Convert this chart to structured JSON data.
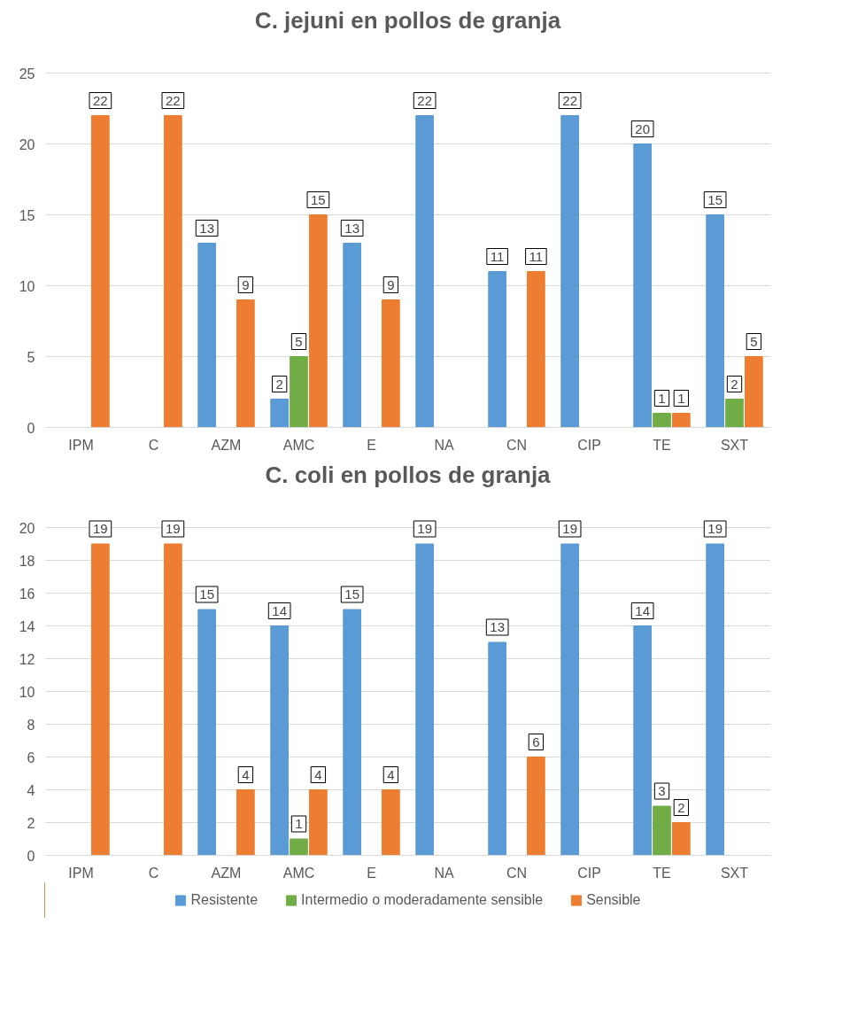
{
  "chart_data": [
    {
      "type": "bar",
      "title": "C. jejuni en pollos de granja",
      "categories": [
        "IPM",
        "C",
        "AZM",
        "AMC",
        "E",
        "NA",
        "CN",
        "CIP",
        "TE",
        "SXT"
      ],
      "ylim": [
        0,
        25
      ],
      "yticks": [
        0,
        5,
        10,
        15,
        20,
        25
      ],
      "grid": "y",
      "series": [
        {
          "color": "#5b9bd5",
          "values": [
            0,
            0,
            13,
            2,
            13,
            22,
            11,
            22,
            20,
            15
          ],
          "value_labels": [
            null,
            null,
            "13",
            "2",
            "13",
            "22",
            "11",
            "22",
            "20",
            "15"
          ]
        },
        {
          "color": "#70ad47",
          "values": [
            0,
            0,
            0,
            5,
            0,
            0,
            0,
            0,
            1,
            2
          ],
          "value_labels": [
            null,
            null,
            null,
            "5",
            null,
            null,
            null,
            null,
            "1",
            "2"
          ]
        },
        {
          "color": "#ed7d31",
          "values": [
            22,
            22,
            9,
            15,
            9,
            0,
            11,
            0,
            1,
            5
          ],
          "value_labels": [
            "22",
            "22",
            "9",
            "15",
            "9",
            null,
            "11",
            null,
            "1",
            "5"
          ]
        }
      ]
    },
    {
      "type": "bar",
      "title": "C. coli en pollos de granja",
      "categories": [
        "IPM",
        "C",
        "AZM",
        "AMC",
        "E",
        "NA",
        "CN",
        "CIP",
        "TE",
        "SXT"
      ],
      "ylim": [
        0,
        20
      ],
      "yticks": [
        0,
        2,
        4,
        6,
        8,
        10,
        12,
        14,
        16,
        18,
        20
      ],
      "grid": "y",
      "legend": "bottom",
      "series": [
        {
          "name": "Resistente",
          "color": "#5b9bd5",
          "values": [
            0,
            0,
            15,
            14,
            15,
            19,
            13,
            19,
            14,
            19
          ],
          "value_labels": [
            null,
            null,
            "15",
            "14",
            "15",
            "19",
            "13",
            "19",
            "14",
            "19"
          ]
        },
        {
          "name": "Intermedio o moderadamente sensible",
          "color": "#70ad47",
          "values": [
            0,
            0,
            0,
            1,
            0,
            0,
            0,
            0,
            3,
            0
          ],
          "value_labels": [
            null,
            null,
            null,
            "1",
            null,
            null,
            null,
            null,
            "3",
            null
          ]
        },
        {
          "name": "Sensible",
          "color": "#ed7d31",
          "values": [
            19,
            19,
            4,
            4,
            4,
            0,
            6,
            0,
            2,
            0
          ],
          "value_labels": [
            "19",
            "19",
            "4",
            "4",
            "4",
            null,
            "6",
            null,
            "2",
            null
          ]
        }
      ]
    }
  ]
}
